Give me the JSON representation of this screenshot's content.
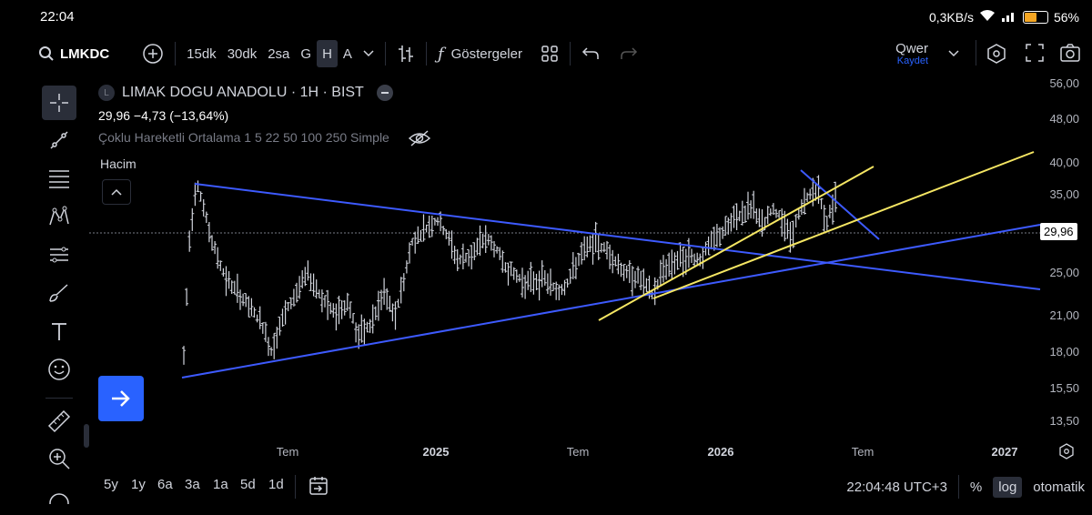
{
  "status": {
    "time": "22:04",
    "net_speed": "0,3KB/s",
    "battery": "56%"
  },
  "toolbar": {
    "symbol": "LMKDC",
    "intervals": [
      "15dk",
      "30dk",
      "2sa",
      "G",
      "H",
      "A"
    ],
    "selected_interval": "H",
    "indicators_label": "Göstergeler",
    "layout_name": "Qwer",
    "save_label": "Kaydet"
  },
  "legend": {
    "logo": "L",
    "title": "LIMAK DOGU ANADOLU · 1H · BIST",
    "price_stats": "29,96  −4,73 (−13,64%)",
    "indicator": "Çoklu Hareketli Ortalama 1 5 22 50 100 250 Simple",
    "volume": "Hacim"
  },
  "price_axis": {
    "labels": [
      "56,00",
      "48,00",
      "40,00",
      "35,00",
      "29,96",
      "25,00",
      "21,00",
      "18,00",
      "15,50",
      "13,50"
    ],
    "current": "29,96"
  },
  "time_axis": {
    "labels": [
      "Tem",
      "2025",
      "Tem",
      "2026",
      "Tem",
      "2027"
    ]
  },
  "bottom": {
    "ranges": [
      "5y",
      "1y",
      "6a",
      "3a",
      "1a",
      "5d",
      "1d"
    ],
    "clock": "22:04:48 UTC+3",
    "percent": "%",
    "log": "log",
    "auto": "otomatik"
  },
  "colors": {
    "background": "#000000",
    "bars": "#d1d4dc",
    "trend_blue": "#3d5afe",
    "trend_yellow": "#f5e663",
    "accent": "#2962ff"
  }
}
